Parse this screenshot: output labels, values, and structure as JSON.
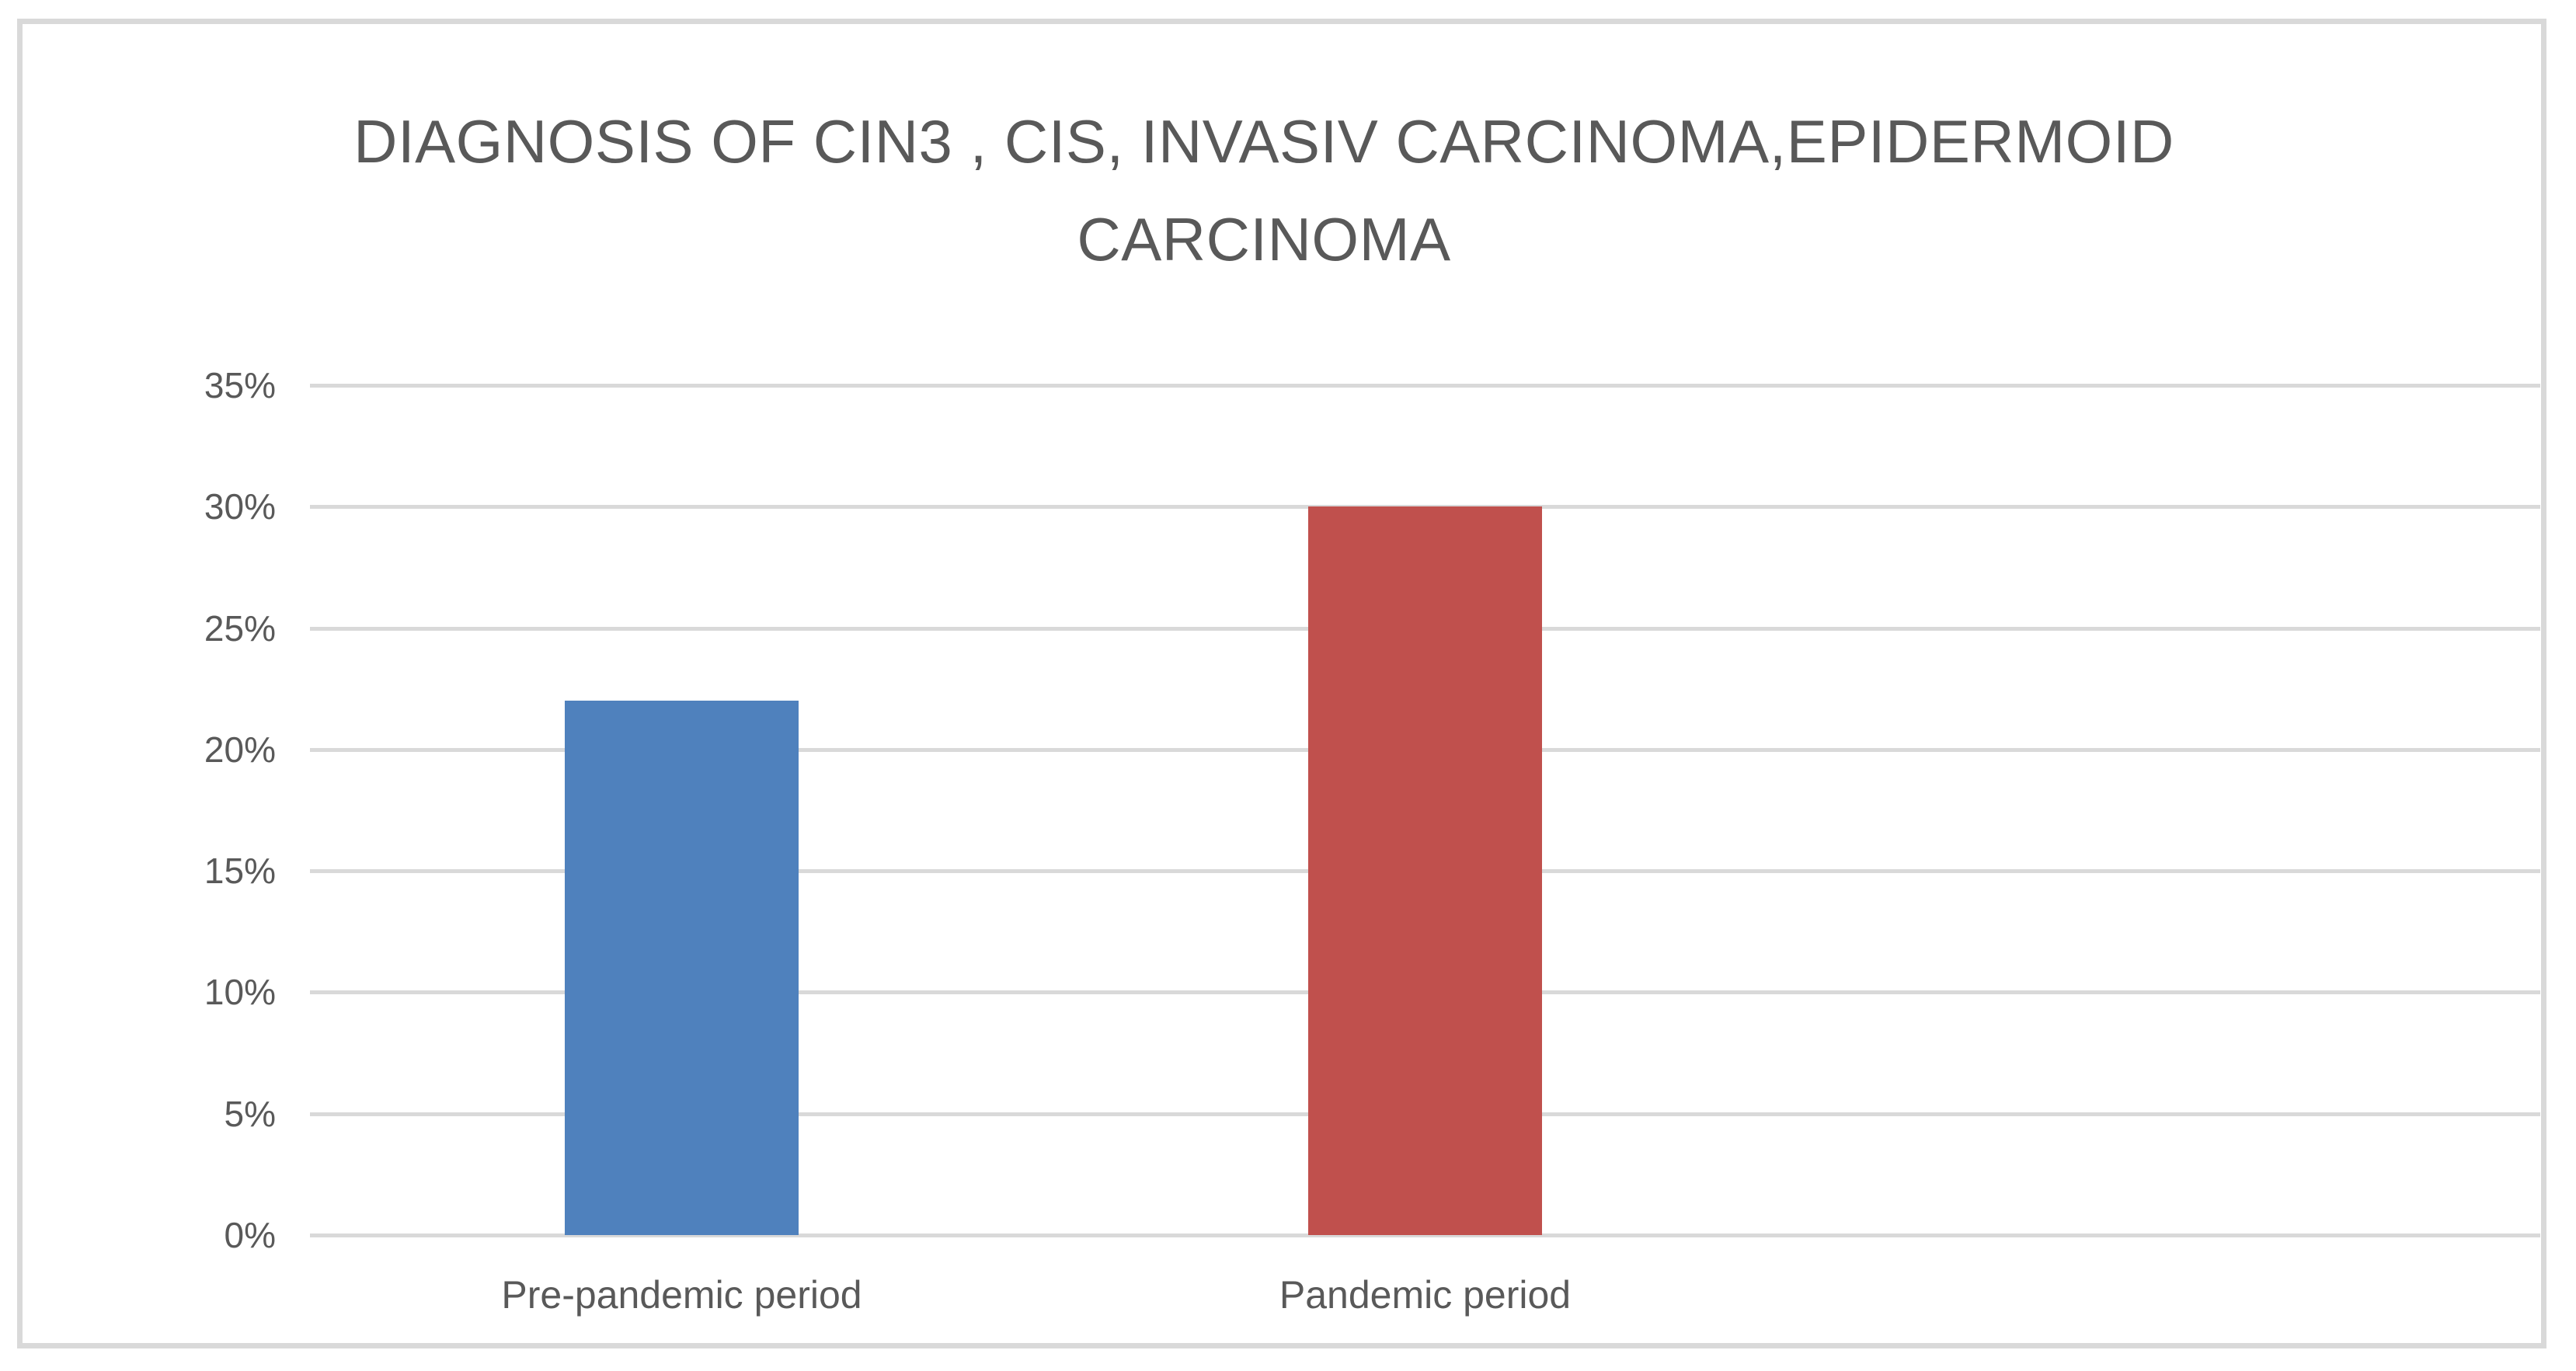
{
  "chart_data": {
    "type": "bar",
    "title": "DIAGNOSIS OF CIN3 , CIS, INVASIV CARCINOMA,EPIDERMOID CARCINOMA",
    "title_lines": [
      "DIAGNOSIS OF CIN3 , CIS, INVASIV CARCINOMA,EPIDERMOID",
      "CARCINOMA"
    ],
    "categories": [
      "Pre-pandemic period",
      "Pandemic period"
    ],
    "values": [
      22,
      30
    ],
    "value_unit": "%",
    "series_name": "",
    "xlabel": "",
    "ylabel": "",
    "ylim": [
      0,
      35
    ],
    "ytick_step": 5,
    "ytick_labels": [
      "35%",
      "30%",
      "25%",
      "20%",
      "15%",
      "10%",
      "5%",
      "0%"
    ],
    "grid": true,
    "legend_position": "none",
    "colors": {
      "bar_fills": [
        "#4f81bd",
        "#c0504d"
      ],
      "gridline": "#d9d9d9",
      "text": "#595959",
      "frame_border": "#d9d9d9",
      "background": "#ffffff"
    }
  }
}
